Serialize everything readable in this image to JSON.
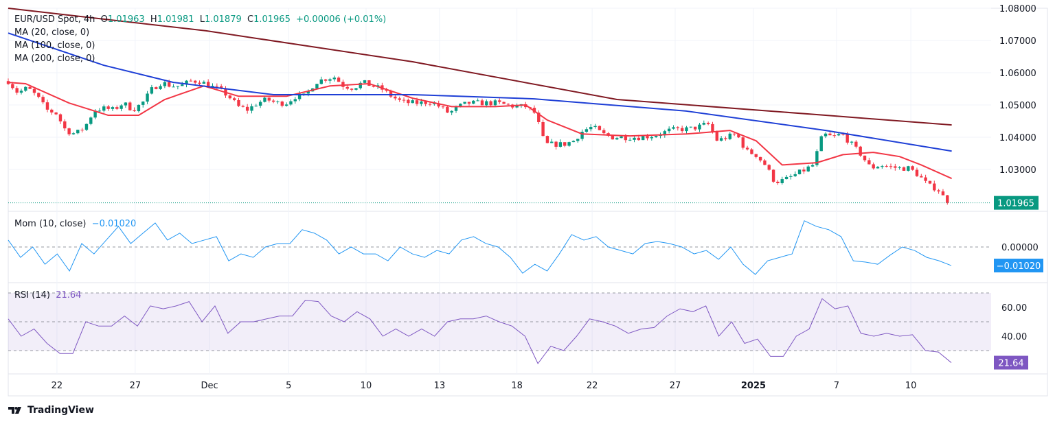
{
  "header": {
    "symbol": "EUR/USD Spot, 4h",
    "open_label": "O",
    "open": "1.01963",
    "high_label": "H",
    "high": "1.01981",
    "low_label": "L",
    "low": "1.01879",
    "close_label": "C",
    "close": "1.01965",
    "change": "+0.00006 (+0.01%)"
  },
  "indicators": {
    "ma20": "MA (20, close, 0)",
    "ma100": "MA (100, close, 0)",
    "ma200": "MA (200, close, 0)",
    "mom": "Mom (10, close)",
    "mom_value": "−0.01020",
    "rsi": "RSI (14)",
    "rsi_value": "21.64"
  },
  "colors": {
    "up": "#089981",
    "down": "#f23645",
    "ma20": "#f23645",
    "ma100": "#1e3fd6",
    "ma200": "#801922",
    "mom": "#2196f3",
    "rsi": "#7e57c2"
  },
  "brand": "TradingView",
  "chart_data": [
    {
      "type": "candlestick",
      "title": "EUR/USD Spot, 4h",
      "ylim": [
        1.0165,
        1.08
      ],
      "yticks": [
        "1.08000",
        "1.07000",
        "1.06000",
        "1.05000",
        "1.04000",
        "1.03000"
      ],
      "ytick_values": [
        1.08,
        1.07,
        1.06,
        1.05,
        1.04,
        1.03
      ],
      "last_price": 1.01965,
      "last_price_label": "1.01965",
      "bars": 217,
      "xticks": [
        {
          "label": "22",
          "bar": 11.2
        },
        {
          "label": "27",
          "bar": 29.2
        },
        {
          "label": "Dec",
          "bar": 46.3
        },
        {
          "label": "5",
          "bar": 64.5
        },
        {
          "label": "10",
          "bar": 82.3
        },
        {
          "label": "13",
          "bar": 99.2
        },
        {
          "label": "18",
          "bar": 117
        },
        {
          "label": "22",
          "bar": 134.3
        },
        {
          "label": "27",
          "bar": 153.4
        },
        {
          "label": "2025",
          "bar": 171.4
        },
        {
          "label": "7",
          "bar": 190.5
        },
        {
          "label": "10",
          "bar": 207.6
        }
      ],
      "close_path": [
        1.0574,
        1.0538,
        1.0553,
        1.0527,
        1.0485,
        1.0474,
        1.0421,
        1.041,
        1.0432,
        1.0485,
        1.0489,
        1.0485,
        1.0506,
        1.0485,
        1.0506,
        1.0549,
        1.057,
        1.0559,
        1.0559,
        1.0574,
        1.0574,
        1.0559,
        1.0549,
        1.0527,
        1.0495,
        1.0485,
        1.0506,
        1.0517,
        1.0506,
        1.0506,
        1.0527,
        1.0527,
        1.057,
        1.0581,
        1.0587,
        1.0559,
        1.0553,
        1.057,
        1.0559,
        1.0549,
        1.0527,
        1.051,
        1.0506,
        1.0506,
        1.051,
        1.0495,
        1.0474,
        1.0495,
        1.0506,
        1.0506,
        1.0506,
        1.0506,
        1.05,
        1.0495,
        1.0495,
        1.0474,
        1.0378,
        1.0378,
        1.0378,
        1.0389,
        1.0421,
        1.0432,
        1.041,
        1.04,
        1.04,
        1.04,
        1.04,
        1.0404,
        1.041,
        1.0421,
        1.0425,
        1.0425,
        1.0432,
        1.0442,
        1.0389,
        1.04,
        1.041,
        1.0357,
        1.0346,
        1.0314,
        1.0261,
        1.0267,
        1.0282,
        1.0297,
        1.0314,
        1.041,
        1.04,
        1.041,
        1.0378,
        1.0346,
        1.0304,
        1.0314,
        1.0308,
        1.0304,
        1.0304,
        1.0282,
        1.025,
        1.024,
        1.01965
      ],
      "series": [
        {
          "name": "MA (20, close, 0)",
          "points": [
            [
              0,
              1.057
            ],
            [
              4,
              1.0566
            ],
            [
              14,
              1.0506
            ],
            [
              23,
              1.0468
            ],
            [
              30,
              1.0468
            ],
            [
              36,
              1.0517
            ],
            [
              45,
              1.0559
            ],
            [
              53,
              1.0527
            ],
            [
              64,
              1.0527
            ],
            [
              74,
              1.0559
            ],
            [
              83,
              1.0566
            ],
            [
              93,
              1.0521
            ],
            [
              102,
              1.0495
            ],
            [
              112,
              1.0495
            ],
            [
              119,
              1.05
            ],
            [
              124,
              1.0453
            ],
            [
              132,
              1.041
            ],
            [
              143,
              1.0404
            ],
            [
              156,
              1.041
            ],
            [
              166,
              1.0421
            ],
            [
              172,
              1.0389
            ],
            [
              178,
              1.0314
            ],
            [
              186,
              1.0321
            ],
            [
              192,
              1.0346
            ],
            [
              199,
              1.0353
            ],
            [
              205,
              1.034
            ],
            [
              210,
              1.0314
            ],
            [
              217,
              1.0272
            ]
          ]
        },
        {
          "name": "MA (100, close, 0)",
          "points": [
            [
              0,
              1.0723
            ],
            [
              22,
              1.0623
            ],
            [
              38,
              1.057
            ],
            [
              61,
              1.0532
            ],
            [
              93,
              1.0532
            ],
            [
              121,
              1.0519
            ],
            [
              156,
              1.0481
            ],
            [
              188,
              1.0421
            ],
            [
              217,
              1.0357
            ]
          ]
        },
        {
          "name": "MA (200, close, 0)",
          "points": [
            [
              0,
              1.08
            ],
            [
              45.5,
              1.073
            ],
            [
              93,
              1.0634
            ],
            [
              140,
              1.0517
            ],
            [
              188,
              1.0468
            ],
            [
              217,
              1.0438
            ]
          ]
        }
      ]
    },
    {
      "type": "line",
      "title": "Mom (10, close)",
      "ylim": [
        -0.018,
        0.018
      ],
      "yticks": [
        "0.00000"
      ],
      "last_value": -0.0102,
      "values": [
        0.0038,
        -0.0057,
        0,
        -0.0095,
        -0.0038,
        -0.0132,
        0.0019,
        -0.0038,
        0.0038,
        0.0113,
        0.0019,
        0.0076,
        0.0132,
        0.0038,
        0.0076,
        0.0019,
        0.0038,
        0.0057,
        -0.0076,
        -0.0038,
        -0.0057,
        0,
        0.0019,
        0.0019,
        0.0095,
        0.0076,
        0.0038,
        -0.0038,
        0,
        -0.0038,
        -0.0038,
        -0.0076,
        0,
        -0.0038,
        -0.0057,
        -0.0019,
        -0.0038,
        0.0038,
        0.0057,
        0.0019,
        0,
        -0.0057,
        -0.0144,
        -0.0095,
        -0.0132,
        -0.0038,
        0.0068,
        0.0038,
        0.0057,
        0,
        -0.0019,
        -0.0038,
        0.0019,
        0.003,
        0.0019,
        0,
        -0.0038,
        -0.0019,
        -0.0068,
        0,
        -0.0095,
        -0.0151,
        -0.0076,
        -0.0057,
        -0.0038,
        0.0144,
        0.0113,
        0.0095,
        0.0057,
        -0.0076,
        -0.0083,
        -0.0095,
        -0.0045,
        0,
        -0.0019,
        -0.0057,
        -0.0076,
        -0.0102
      ]
    },
    {
      "type": "line",
      "title": "RSI (14)",
      "ylim": [
        15,
        78
      ],
      "yticks": [
        "60.00",
        "40.00"
      ],
      "bands": [
        70,
        50,
        30
      ],
      "last_value": 21.64,
      "values": [
        52,
        40,
        45,
        35,
        28,
        28,
        50,
        47,
        47,
        54,
        47,
        61,
        59,
        61,
        64,
        50,
        61,
        42,
        50,
        50,
        52,
        54,
        54,
        65,
        64,
        54,
        50,
        57,
        52,
        40,
        45,
        40,
        45,
        40,
        50,
        52,
        52,
        54,
        50,
        47,
        40,
        21,
        33,
        30,
        40,
        52,
        50,
        47,
        42,
        45,
        46,
        54,
        59,
        57,
        61,
        40,
        50,
        35,
        38,
        26,
        26,
        40,
        45,
        66,
        59,
        61,
        42,
        40,
        42,
        40,
        41,
        30,
        29,
        21.64
      ]
    }
  ]
}
